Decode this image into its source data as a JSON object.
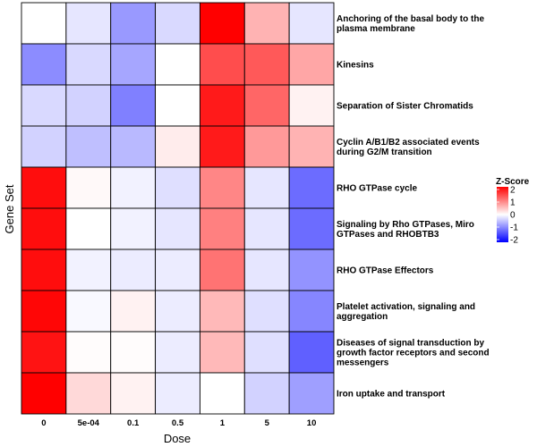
{
  "chart_data": {
    "type": "heatmap",
    "xlabel": "Dose",
    "ylabel": "Gene Set",
    "columns": [
      "0",
      "5e-04",
      "0.1",
      "0.5",
      "1",
      "5",
      "10"
    ],
    "rows": [
      [
        "Anchoring of the basal body to the",
        "plasma membrane"
      ],
      [
        "Kinesins"
      ],
      [
        "Separation of Sister Chromatids"
      ],
      [
        "Cyclin A/B1/B2 associated events",
        "during G2/M transition"
      ],
      [
        "RHO GTPase cycle"
      ],
      [
        "Signaling by Rho GTPases, Miro",
        "GTPases and RHOBTB3"
      ],
      [
        "RHO GTPase Effectors"
      ],
      [
        "Platelet activation, signaling and",
        "aggregation"
      ],
      [
        "Diseases of signal transduction by",
        "growth factor receptors and second",
        "messengers"
      ],
      [
        "Iron uptake and transport"
      ]
    ],
    "values": [
      [
        0.0,
        -0.2,
        -0.8,
        -0.3,
        2.0,
        0.6,
        -0.2
      ],
      [
        -0.9,
        -0.3,
        -0.7,
        0.0,
        1.4,
        1.3,
        0.7
      ],
      [
        -0.3,
        -0.35,
        -1.0,
        0.0,
        1.8,
        1.2,
        0.1
      ],
      [
        -0.35,
        -0.5,
        -0.55,
        0.15,
        1.8,
        0.8,
        0.6
      ],
      [
        1.9,
        0.05,
        -0.1,
        -0.25,
        0.95,
        -0.2,
        -1.15
      ],
      [
        1.9,
        0.0,
        -0.1,
        -0.2,
        1.0,
        -0.2,
        -1.15
      ],
      [
        1.9,
        -0.1,
        -0.15,
        -0.15,
        1.1,
        -0.2,
        -0.85
      ],
      [
        1.95,
        -0.05,
        0.1,
        -0.15,
        0.55,
        -0.25,
        -0.95
      ],
      [
        1.85,
        0.02,
        0.02,
        -0.15,
        0.55,
        -0.25,
        -1.25
      ],
      [
        2.0,
        0.3,
        0.1,
        -0.15,
        0.0,
        -0.35,
        -0.75
      ]
    ],
    "legend": {
      "title": "Z-Score",
      "ticks": [
        "2",
        "1",
        "0",
        "-1",
        "-2"
      ],
      "range": [
        -2,
        2
      ],
      "colors": {
        "low": "#0000ff",
        "mid": "#ffffff",
        "high": "#ff0000"
      },
      "position": "right"
    }
  }
}
